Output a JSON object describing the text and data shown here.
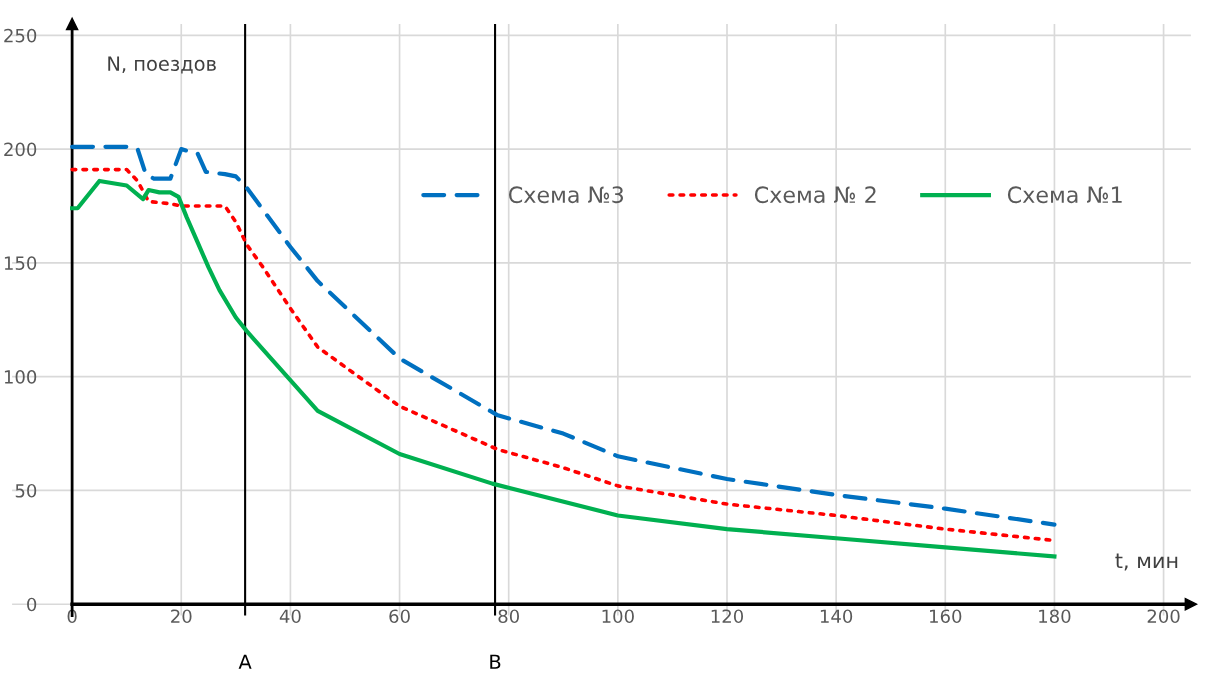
{
  "chart_data": {
    "type": "line",
    "xlabel": "t, мин",
    "ylabel": "N, поездов",
    "xlim": [
      -11,
      205
    ],
    "ylim": [
      -5,
      255
    ],
    "xticks": [
      0,
      20,
      40,
      60,
      80,
      100,
      120,
      140,
      160,
      180,
      200
    ],
    "yticks": [
      0,
      50,
      100,
      150,
      200,
      250
    ],
    "grid": true,
    "legend": "top right",
    "ref_lines": [
      {
        "axis": "x",
        "value": 31.7,
        "label": "A",
        "color": "#000000"
      },
      {
        "axis": "x",
        "value": 77.5,
        "label": "B",
        "color": "#000000"
      }
    ],
    "series": [
      {
        "name": "Схема №3",
        "color": "#0070c0",
        "line_style": "dashed",
        "x": [
          0,
          10,
          12,
          13.5,
          15,
          18,
          20,
          23,
          24.5,
          28,
          30,
          32,
          40,
          45,
          60,
          78,
          90,
          100,
          120,
          140,
          160,
          180
        ],
        "values": [
          201,
          201,
          200,
          189,
          187,
          187,
          200,
          198,
          190,
          189,
          188,
          183,
          157,
          142,
          108,
          83,
          75,
          65,
          55,
          48,
          42,
          35
        ]
      },
      {
        "name": "Схема № 2",
        "color": "#ff0000",
        "line_style": "dotted",
        "x": [
          0,
          10,
          12,
          14,
          18,
          20,
          28,
          30,
          32,
          35,
          40,
          45,
          60,
          78,
          90,
          100,
          120,
          140,
          160,
          180
        ],
        "values": [
          191,
          191,
          186,
          177,
          176,
          175,
          175,
          168,
          158,
          148,
          130,
          113,
          87,
          68,
          60,
          52,
          44,
          39,
          33,
          28
        ]
      },
      {
        "name": "Схема №1",
        "color": "#00b050",
        "line_style": "solid",
        "x": [
          0,
          1,
          5,
          10,
          13,
          14,
          16,
          18,
          19.5,
          21,
          23,
          25,
          27,
          30,
          32,
          45,
          60,
          77,
          100,
          120,
          140,
          160,
          180
        ],
        "values": [
          174,
          174,
          186,
          184,
          178,
          182,
          181,
          181,
          179,
          170,
          159,
          148,
          138,
          126,
          120,
          85,
          66,
          53,
          39,
          33,
          29,
          25,
          21
        ]
      }
    ]
  }
}
